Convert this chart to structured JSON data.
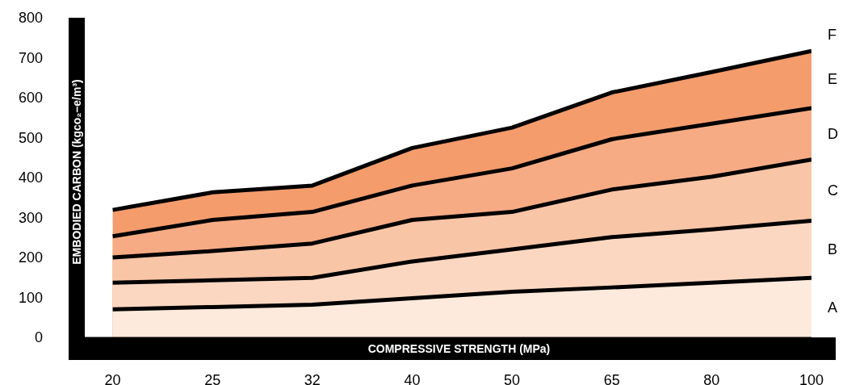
{
  "chart_data": {
    "type": "area",
    "xlabel": "COMPRESSIVE STRENGTH (MPa)",
    "ylabel": "EMBODIED CARBON  (kgco₂–e/m³)",
    "categories": [
      "20",
      "25",
      "32",
      "40",
      "50",
      "65",
      "80",
      "100"
    ],
    "ylim": [
      0,
      800
    ],
    "yticks": [
      0,
      100,
      200,
      300,
      400,
      500,
      600,
      700,
      800
    ],
    "series": [
      {
        "name": "A",
        "color": "#fdeadd",
        "values": [
          70,
          76,
          82,
          98,
          114,
          125,
          137,
          149
        ]
      },
      {
        "name": "B",
        "color": "#fbd7c2",
        "values": [
          137,
          143,
          149,
          190,
          220,
          251,
          270,
          292
        ]
      },
      {
        "name": "C",
        "color": "#f9c5a7",
        "values": [
          200,
          216,
          235,
          294,
          314,
          370,
          402,
          445
        ]
      },
      {
        "name": "D",
        "color": "#f6ab85",
        "values": [
          253,
          294,
          314,
          380,
          423,
          496,
          535,
          574
        ]
      },
      {
        "name": "E",
        "color": "#f49c6c",
        "values": [
          319,
          363,
          380,
          474,
          525,
          613,
          664,
          717
        ]
      }
    ],
    "annotations": [
      "F"
    ]
  }
}
